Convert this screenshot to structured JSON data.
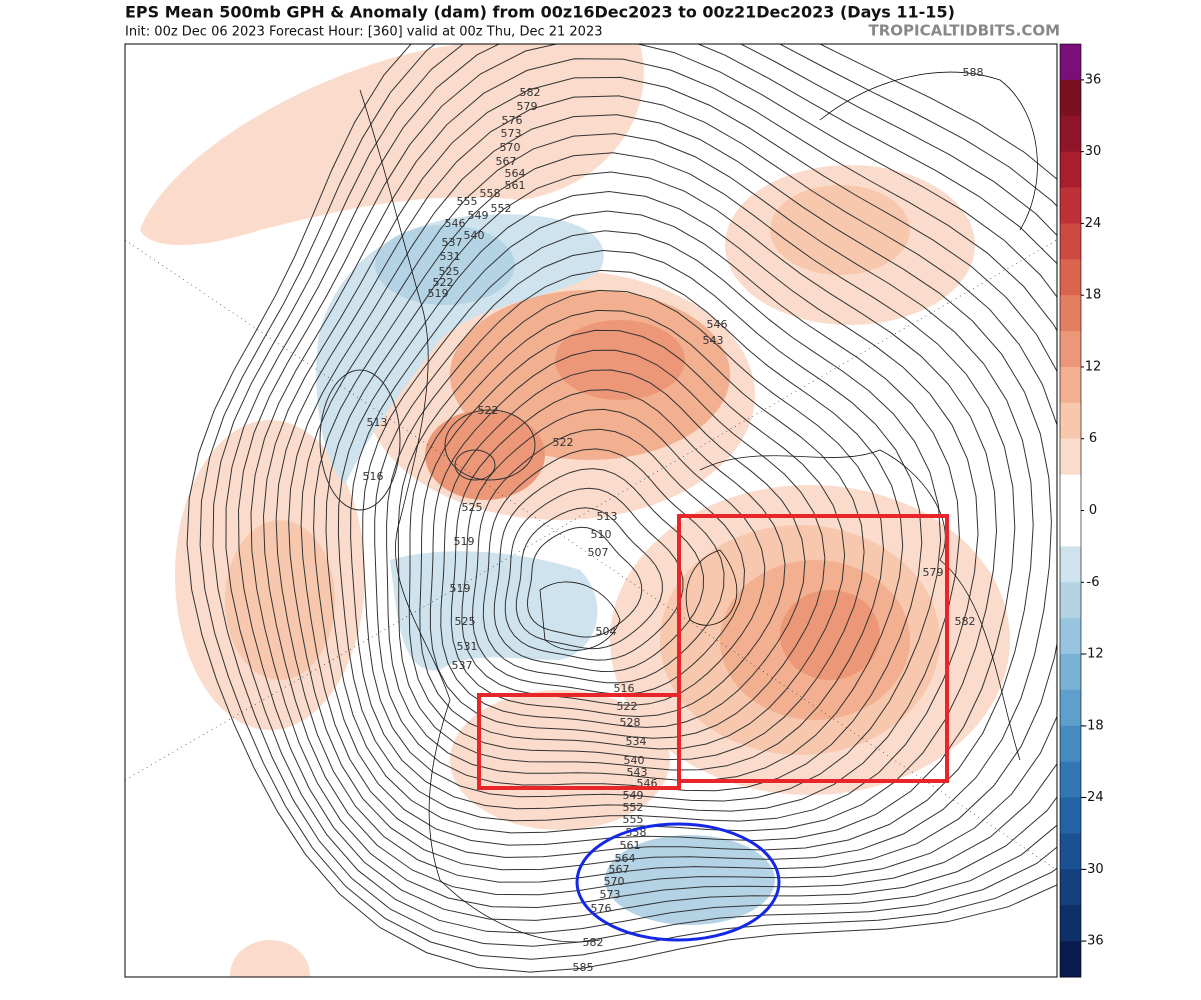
{
  "header": {
    "title": "EPS Mean 500mb GPH & Anomaly (dam) from 00z16Dec2023 to 00z21Dec2023 (Days 11-15)",
    "subtitle": "Init: 00z Dec 06 2023   Forecast Hour: [360]   valid at 00z Thu, Dec 21 2023",
    "brand": "TROPICALTIDBITS.COM"
  },
  "colorbar": {
    "range": [
      -39,
      39
    ],
    "ticks": [
      36,
      30,
      24,
      18,
      12,
      6,
      0,
      -6,
      -12,
      -18,
      -24,
      -30,
      -36
    ],
    "colors": [
      "#7b0f7a",
      "#7a1020",
      "#8f1528",
      "#a81e2e",
      "#bf3038",
      "#cc4a40",
      "#d9654e",
      "#e47e60",
      "#ec9878",
      "#f2b090",
      "#f7c8ae",
      "#fbdccc",
      "#ffffff",
      "#ffffff",
      "#cfe3ee",
      "#b4d4e6",
      "#97c4de",
      "#7ab2d5",
      "#5e9fcb",
      "#458bc0",
      "#3276b4",
      "#2363a5",
      "#1b5193",
      "#15407e",
      "#0e2f68",
      "#0b1a4f"
    ]
  },
  "contour_labels": [
    582,
    579,
    576,
    573,
    570,
    567,
    564,
    561,
    558,
    555,
    552,
    549,
    546,
    540,
    537,
    531,
    525,
    522,
    519,
    546,
    543,
    522,
    513,
    522,
    516,
    525,
    519,
    513,
    510,
    507,
    504,
    519,
    525,
    531,
    537,
    516,
    522,
    528,
    534,
    540,
    543,
    546,
    549,
    552,
    555,
    558,
    561,
    564,
    567,
    570,
    573,
    576,
    582,
    585,
    588,
    579,
    582
  ]
}
